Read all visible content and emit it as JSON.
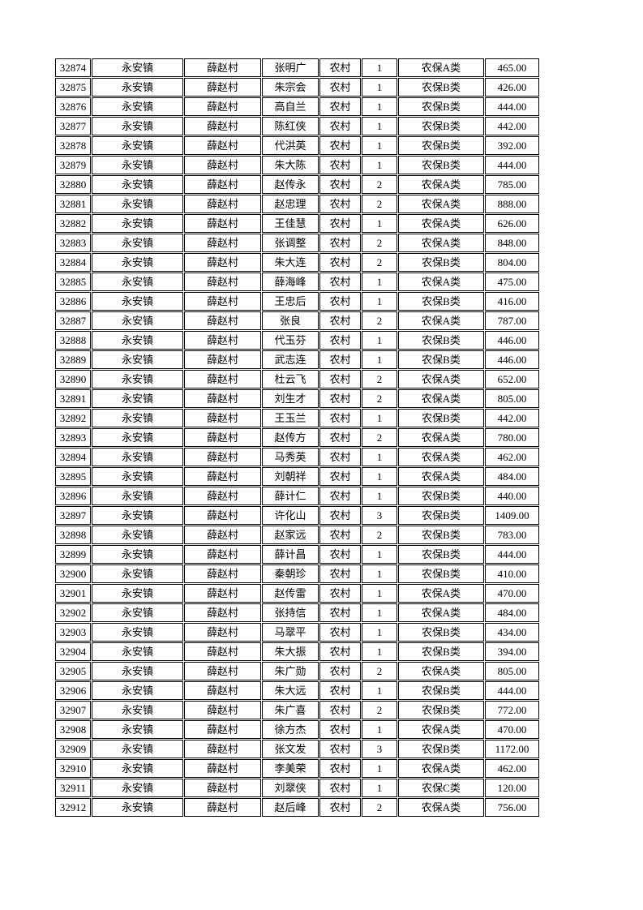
{
  "page": {
    "background_color": "#ffffff",
    "border_color": "#000000",
    "text_color": "#000000"
  },
  "table": {
    "columns": [
      "record-id",
      "town",
      "village",
      "person-name",
      "residence-type",
      "person-count",
      "insurance-category",
      "amount"
    ],
    "rows": [
      [
        "32874",
        "永安镇",
        "薛赵村",
        "张明广",
        "农村",
        "1",
        "农保A类",
        "465.00"
      ],
      [
        "32875",
        "永安镇",
        "薛赵村",
        "朱宗会",
        "农村",
        "1",
        "农保B类",
        "426.00"
      ],
      [
        "32876",
        "永安镇",
        "薛赵村",
        "高自兰",
        "农村",
        "1",
        "农保B类",
        "444.00"
      ],
      [
        "32877",
        "永安镇",
        "薛赵村",
        "陈红侠",
        "农村",
        "1",
        "农保B类",
        "442.00"
      ],
      [
        "32878",
        "永安镇",
        "薛赵村",
        "代洪英",
        "农村",
        "1",
        "农保B类",
        "392.00"
      ],
      [
        "32879",
        "永安镇",
        "薛赵村",
        "朱大陈",
        "农村",
        "1",
        "农保B类",
        "444.00"
      ],
      [
        "32880",
        "永安镇",
        "薛赵村",
        "赵传永",
        "农村",
        "2",
        "农保A类",
        "785.00"
      ],
      [
        "32881",
        "永安镇",
        "薛赵村",
        "赵忠理",
        "农村",
        "2",
        "农保A类",
        "888.00"
      ],
      [
        "32882",
        "永安镇",
        "薛赵村",
        "王佳慧",
        "农村",
        "1",
        "农保A类",
        "626.00"
      ],
      [
        "32883",
        "永安镇",
        "薛赵村",
        "张调整",
        "农村",
        "2",
        "农保A类",
        "848.00"
      ],
      [
        "32884",
        "永安镇",
        "薛赵村",
        "朱大连",
        "农村",
        "2",
        "农保B类",
        "804.00"
      ],
      [
        "32885",
        "永安镇",
        "薛赵村",
        "薛海峰",
        "农村",
        "1",
        "农保A类",
        "475.00"
      ],
      [
        "32886",
        "永安镇",
        "薛赵村",
        "王忠后",
        "农村",
        "1",
        "农保B类",
        "416.00"
      ],
      [
        "32887",
        "永安镇",
        "薛赵村",
        "张良",
        "农村",
        "2",
        "农保A类",
        "787.00"
      ],
      [
        "32888",
        "永安镇",
        "薛赵村",
        "代玉芬",
        "农村",
        "1",
        "农保B类",
        "446.00"
      ],
      [
        "32889",
        "永安镇",
        "薛赵村",
        "武志连",
        "农村",
        "1",
        "农保B类",
        "446.00"
      ],
      [
        "32890",
        "永安镇",
        "薛赵村",
        "杜云飞",
        "农村",
        "2",
        "农保A类",
        "652.00"
      ],
      [
        "32891",
        "永安镇",
        "薛赵村",
        "刘生才",
        "农村",
        "2",
        "农保A类",
        "805.00"
      ],
      [
        "32892",
        "永安镇",
        "薛赵村",
        "王玉兰",
        "农村",
        "1",
        "农保B类",
        "442.00"
      ],
      [
        "32893",
        "永安镇",
        "薛赵村",
        "赵传方",
        "农村",
        "2",
        "农保A类",
        "780.00"
      ],
      [
        "32894",
        "永安镇",
        "薛赵村",
        "马秀英",
        "农村",
        "1",
        "农保A类",
        "462.00"
      ],
      [
        "32895",
        "永安镇",
        "薛赵村",
        "刘朝祥",
        "农村",
        "1",
        "农保A类",
        "484.00"
      ],
      [
        "32896",
        "永安镇",
        "薛赵村",
        "薛计仁",
        "农村",
        "1",
        "农保B类",
        "440.00"
      ],
      [
        "32897",
        "永安镇",
        "薛赵村",
        "许化山",
        "农村",
        "3",
        "农保B类",
        "1409.00"
      ],
      [
        "32898",
        "永安镇",
        "薛赵村",
        "赵家远",
        "农村",
        "2",
        "农保B类",
        "783.00"
      ],
      [
        "32899",
        "永安镇",
        "薛赵村",
        "薛计昌",
        "农村",
        "1",
        "农保B类",
        "444.00"
      ],
      [
        "32900",
        "永安镇",
        "薛赵村",
        "秦朝珍",
        "农村",
        "1",
        "农保B类",
        "410.00"
      ],
      [
        "32901",
        "永安镇",
        "薛赵村",
        "赵传雷",
        "农村",
        "1",
        "农保A类",
        "470.00"
      ],
      [
        "32902",
        "永安镇",
        "薛赵村",
        "张持信",
        "农村",
        "1",
        "农保A类",
        "484.00"
      ],
      [
        "32903",
        "永安镇",
        "薛赵村",
        "马翠平",
        "农村",
        "1",
        "农保B类",
        "434.00"
      ],
      [
        "32904",
        "永安镇",
        "薛赵村",
        "朱大振",
        "农村",
        "1",
        "农保B类",
        "394.00"
      ],
      [
        "32905",
        "永安镇",
        "薛赵村",
        "朱广勋",
        "农村",
        "2",
        "农保A类",
        "805.00"
      ],
      [
        "32906",
        "永安镇",
        "薛赵村",
        "朱大远",
        "农村",
        "1",
        "农保B类",
        "444.00"
      ],
      [
        "32907",
        "永安镇",
        "薛赵村",
        "朱广喜",
        "农村",
        "2",
        "农保B类",
        "772.00"
      ],
      [
        "32908",
        "永安镇",
        "薛赵村",
        "徐方杰",
        "农村",
        "1",
        "农保A类",
        "470.00"
      ],
      [
        "32909",
        "永安镇",
        "薛赵村",
        "张文发",
        "农村",
        "3",
        "农保B类",
        "1172.00"
      ],
      [
        "32910",
        "永安镇",
        "薛赵村",
        "李美荣",
        "农村",
        "1",
        "农保A类",
        "462.00"
      ],
      [
        "32911",
        "永安镇",
        "薛赵村",
        "刘翠侠",
        "农村",
        "1",
        "农保C类",
        "120.00"
      ],
      [
        "32912",
        "永安镇",
        "薛赵村",
        "赵后峰",
        "农村",
        "2",
        "农保A类",
        "756.00"
      ]
    ]
  }
}
